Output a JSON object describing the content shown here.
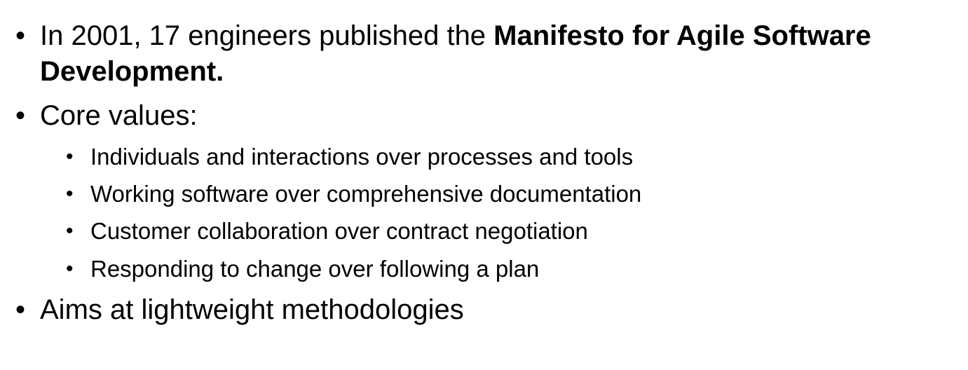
{
  "bullet_glyph": "•",
  "items": [
    {
      "line1_prefix": "In 2001, 17 engineers published the ",
      "line1_bold": "Manifesto for Agile Software",
      "line2_bold": "Development."
    },
    {
      "text": "Core values:"
    },
    {
      "subitems": [
        "Individuals and interactions over processes and tools",
        "Working software over comprehensive documentation",
        "Customer collaboration over contract negotiation",
        "Responding to change over following a plan"
      ]
    },
    {
      "text": "Aims at lightweight methodologies"
    }
  ]
}
